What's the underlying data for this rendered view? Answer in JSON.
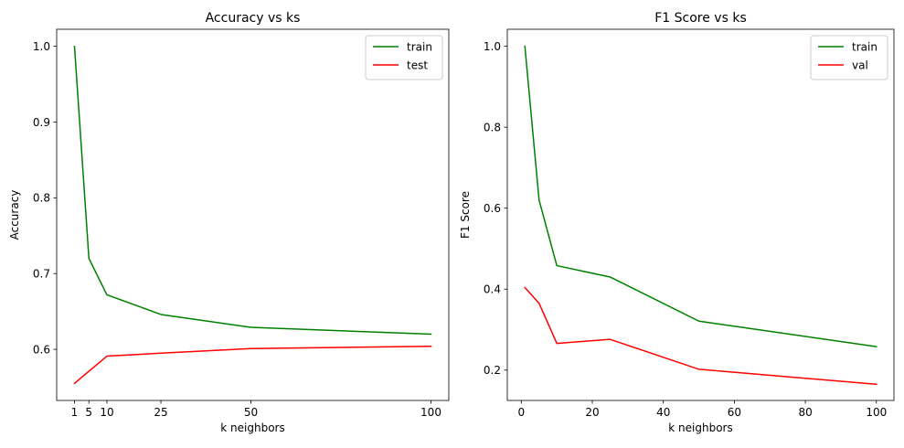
{
  "chart_data": [
    {
      "type": "line",
      "title": "Accuracy vs ks",
      "xlabel": "k neighbors",
      "ylabel": "Accuracy",
      "xlim": [
        -3.95,
        104.95
      ],
      "ylim": [
        0.5325,
        1.0225
      ],
      "xticks": [
        1,
        5,
        10,
        25,
        50,
        100
      ],
      "yticks": [
        0.6,
        0.7,
        0.8,
        0.9,
        1.0
      ],
      "ytick_labels": [
        "0.6",
        "0.7",
        "0.8",
        "0.9",
        "1.0"
      ],
      "grid": false,
      "legend": "top-right",
      "x": [
        1,
        5,
        10,
        25,
        50,
        100
      ],
      "series": [
        {
          "name": "train",
          "color": "#008000",
          "values": [
            1.0,
            0.72,
            0.672,
            0.646,
            0.629,
            0.62
          ]
        },
        {
          "name": "test",
          "color": "#ff0000",
          "values": [
            0.555,
            0.571,
            0.591,
            0.595,
            0.601,
            0.604
          ]
        }
      ]
    },
    {
      "type": "line",
      "title": "F1 Score vs ks",
      "xlabel": "k neighbors",
      "ylabel": "F1 Score",
      "xlim": [
        -3.95,
        104.95
      ],
      "ylim": [
        0.125,
        1.042
      ],
      "xticks": [
        0,
        20,
        40,
        60,
        80,
        100
      ],
      "yticks": [
        0.2,
        0.4,
        0.6,
        0.8,
        1.0
      ],
      "ytick_labels": [
        "0.2",
        "0.4",
        "0.6",
        "0.8",
        "1.0"
      ],
      "grid": false,
      "legend": "top-right",
      "x": [
        1,
        5,
        10,
        25,
        50,
        100
      ],
      "series": [
        {
          "name": "train",
          "color": "#008000",
          "values": [
            1.0,
            0.62,
            0.458,
            0.43,
            0.321,
            0.258
          ]
        },
        {
          "name": "val",
          "color": "#ff0000",
          "values": [
            0.404,
            0.365,
            0.266,
            0.276,
            0.202,
            0.165
          ]
        }
      ]
    }
  ]
}
